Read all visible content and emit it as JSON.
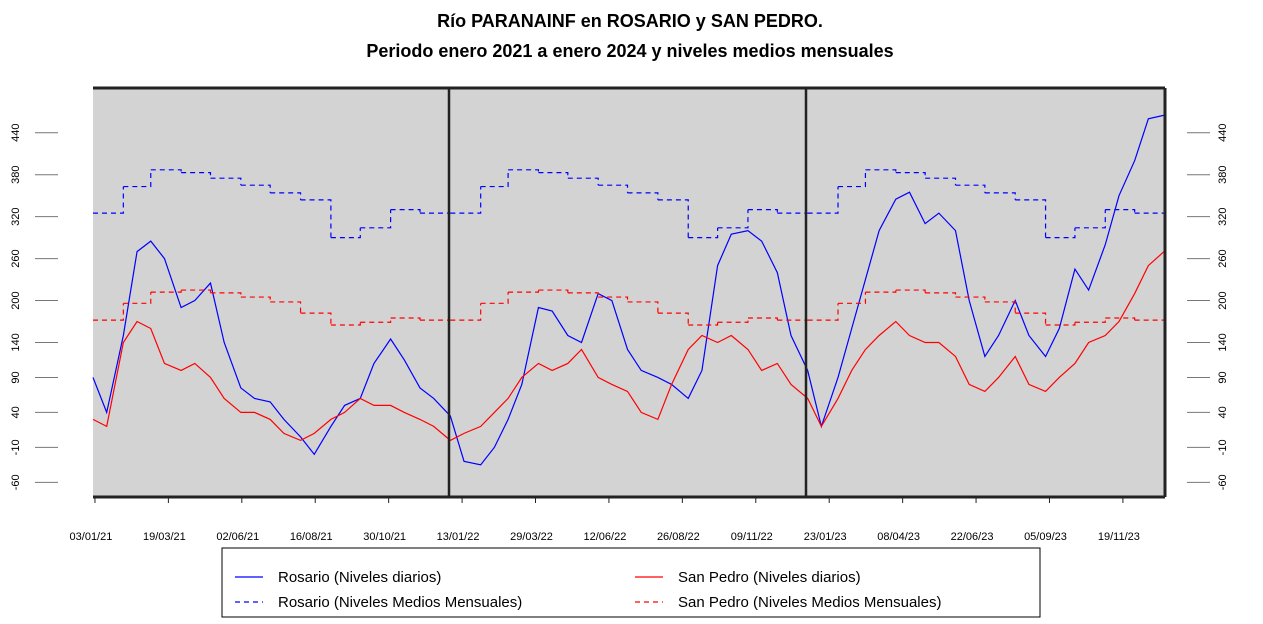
{
  "chart_data": {
    "type": "line",
    "title": "Río PARANAINF en ROSARIO y SAN PEDRO.",
    "subtitle": "Periodo enero 2021 a enero 2024 y niveles medios mensuales",
    "xlim": [
      "01/01/21",
      "01/01/24"
    ],
    "ylim": [
      -81,
      504
    ],
    "xticks": [
      "03/01/21",
      "19/03/21",
      "02/06/21",
      "16/08/21",
      "30/10/21",
      "13/01/22",
      "29/03/22",
      "12/06/22",
      "26/08/22",
      "09/11/22",
      "23/01/23",
      "08/04/23",
      "22/06/23",
      "05/09/23",
      "19/11/23"
    ],
    "yticks": [
      -60,
      -10,
      40,
      90,
      140,
      200,
      260,
      320,
      380,
      440
    ],
    "series": [
      {
        "name": "Rosario (Niveles diarios)",
        "color": "#0000ff",
        "dashed": false,
        "x": [
          "01/01/21",
          "15/01/21",
          "01/02/21",
          "15/02/21",
          "01/03/21",
          "15/03/21",
          "01/04/21",
          "15/04/21",
          "01/05/21",
          "15/05/21",
          "01/06/21",
          "15/06/21",
          "01/07/21",
          "15/07/21",
          "01/08/21",
          "15/08/21",
          "01/09/21",
          "15/09/21",
          "01/10/21",
          "15/10/21",
          "01/11/21",
          "15/11/21",
          "01/12/21",
          "15/12/21",
          "01/01/22",
          "15/01/22",
          "01/02/22",
          "15/02/22",
          "01/03/22",
          "15/03/22",
          "01/04/22",
          "15/04/22",
          "01/05/22",
          "15/05/22",
          "01/06/22",
          "15/06/22",
          "01/07/22",
          "15/07/22",
          "01/08/22",
          "15/08/22",
          "01/09/22",
          "15/09/22",
          "01/10/22",
          "15/10/22",
          "01/11/22",
          "15/11/22",
          "01/12/22",
          "15/12/22",
          "01/01/23",
          "15/01/23",
          "01/02/23",
          "15/02/23",
          "01/03/23",
          "15/03/23",
          "01/04/23",
          "15/04/23",
          "01/05/23",
          "15/05/23",
          "01/06/23",
          "15/06/23",
          "01/07/23",
          "15/07/23",
          "01/08/23",
          "15/08/23",
          "01/09/23",
          "15/09/23",
          "01/10/23",
          "15/10/23",
          "01/11/23",
          "15/11/23",
          "01/12/23",
          "15/12/23",
          "31/12/23"
        ],
        "values": [
          90,
          40,
          150,
          270,
          285,
          260,
          190,
          200,
          225,
          140,
          75,
          60,
          55,
          30,
          5,
          -20,
          20,
          50,
          60,
          110,
          145,
          115,
          75,
          60,
          35,
          -30,
          -35,
          -10,
          30,
          80,
          190,
          185,
          150,
          140,
          210,
          200,
          130,
          100,
          90,
          80,
          60,
          100,
          250,
          295,
          300,
          285,
          240,
          150,
          100,
          20,
          90,
          160,
          230,
          300,
          345,
          355,
          310,
          325,
          300,
          200,
          120,
          150,
          200,
          150,
          120,
          160,
          245,
          215,
          280,
          350,
          400,
          460,
          465
        ]
      },
      {
        "name": "San Pedro (Niveles diarios)",
        "color": "#ff0000",
        "dashed": false,
        "x": [
          "01/01/21",
          "15/01/21",
          "01/02/21",
          "15/02/21",
          "01/03/21",
          "15/03/21",
          "01/04/21",
          "15/04/21",
          "01/05/21",
          "15/05/21",
          "01/06/21",
          "15/06/21",
          "01/07/21",
          "15/07/21",
          "01/08/21",
          "15/08/21",
          "01/09/21",
          "15/09/21",
          "01/10/21",
          "15/10/21",
          "01/11/21",
          "15/11/21",
          "01/12/21",
          "15/12/21",
          "01/01/22",
          "15/01/22",
          "01/02/22",
          "15/02/22",
          "01/03/22",
          "15/03/22",
          "01/04/22",
          "15/04/22",
          "01/05/22",
          "15/05/22",
          "01/06/22",
          "15/06/22",
          "01/07/22",
          "15/07/22",
          "01/08/22",
          "15/08/22",
          "01/09/22",
          "15/09/22",
          "01/10/22",
          "15/10/22",
          "01/11/22",
          "15/11/22",
          "01/12/22",
          "15/12/22",
          "01/01/23",
          "15/01/23",
          "01/02/23",
          "15/02/23",
          "01/03/23",
          "15/03/23",
          "01/04/23",
          "15/04/23",
          "01/05/23",
          "15/05/23",
          "01/06/23",
          "15/06/23",
          "01/07/23",
          "15/07/23",
          "01/08/23",
          "15/08/23",
          "01/09/23",
          "15/09/23",
          "01/10/23",
          "15/10/23",
          "01/11/23",
          "15/11/23",
          "01/12/23",
          "15/12/23",
          "31/12/23"
        ],
        "values": [
          30,
          20,
          140,
          170,
          160,
          110,
          100,
          110,
          90,
          60,
          40,
          40,
          30,
          10,
          0,
          10,
          30,
          40,
          60,
          50,
          50,
          40,
          30,
          20,
          0,
          10,
          20,
          40,
          60,
          90,
          110,
          100,
          110,
          130,
          90,
          80,
          70,
          40,
          30,
          80,
          130,
          150,
          140,
          150,
          130,
          100,
          110,
          80,
          60,
          20,
          60,
          100,
          130,
          150,
          170,
          150,
          140,
          140,
          120,
          80,
          70,
          90,
          120,
          80,
          70,
          90,
          110,
          140,
          150,
          170,
          210,
          250,
          270
        ]
      },
      {
        "name": "Rosario (Niveles Medios Mensuales)",
        "color": "#0000ff",
        "dashed": true,
        "x": [
          "01/01/21",
          "01/02/21",
          "01/03/21",
          "01/04/21",
          "01/05/21",
          "01/06/21",
          "01/07/21",
          "01/08/21",
          "01/09/21",
          "01/10/21",
          "01/11/21",
          "01/12/21",
          "01/01/22",
          "01/02/22",
          "01/03/22",
          "01/04/22",
          "01/05/22",
          "01/06/22",
          "01/07/22",
          "01/08/22",
          "01/09/22",
          "01/10/22",
          "01/11/22",
          "01/12/22",
          "01/01/23",
          "01/02/23",
          "01/03/23",
          "01/04/23",
          "01/05/23",
          "01/06/23",
          "01/07/23",
          "01/08/23",
          "01/09/23",
          "01/10/23",
          "01/11/23",
          "01/12/23"
        ],
        "values": [
          325,
          363,
          387,
          383,
          375,
          365,
          354,
          344,
          290,
          304,
          330,
          325,
          325,
          363,
          387,
          383,
          375,
          365,
          354,
          344,
          290,
          304,
          330,
          325,
          325,
          363,
          387,
          383,
          375,
          365,
          354,
          344,
          290,
          304,
          330,
          325
        ]
      },
      {
        "name": "San Pedro (Niveles Medios Mensuales)",
        "color": "#ff0000",
        "dashed": true,
        "x": [
          "01/01/21",
          "01/02/21",
          "01/03/21",
          "01/04/21",
          "01/05/21",
          "01/06/21",
          "01/07/21",
          "01/08/21",
          "01/09/21",
          "01/10/21",
          "01/11/21",
          "01/12/21",
          "01/01/22",
          "01/02/22",
          "01/03/22",
          "01/04/22",
          "01/05/22",
          "01/06/22",
          "01/07/22",
          "01/08/22",
          "01/09/22",
          "01/10/22",
          "01/11/22",
          "01/12/22",
          "01/01/23",
          "01/02/23",
          "01/03/23",
          "01/04/23",
          "01/05/23",
          "01/06/23",
          "01/07/23",
          "01/08/23",
          "01/09/23",
          "01/10/23",
          "01/11/23",
          "01/12/23"
        ],
        "values": [
          172,
          196,
          212,
          215,
          211,
          205,
          198,
          182,
          165,
          169,
          175,
          172,
          172,
          196,
          212,
          215,
          211,
          205,
          198,
          182,
          165,
          169,
          175,
          172,
          172,
          196,
          212,
          215,
          211,
          205,
          198,
          182,
          165,
          169,
          175,
          172
        ]
      }
    ]
  }
}
